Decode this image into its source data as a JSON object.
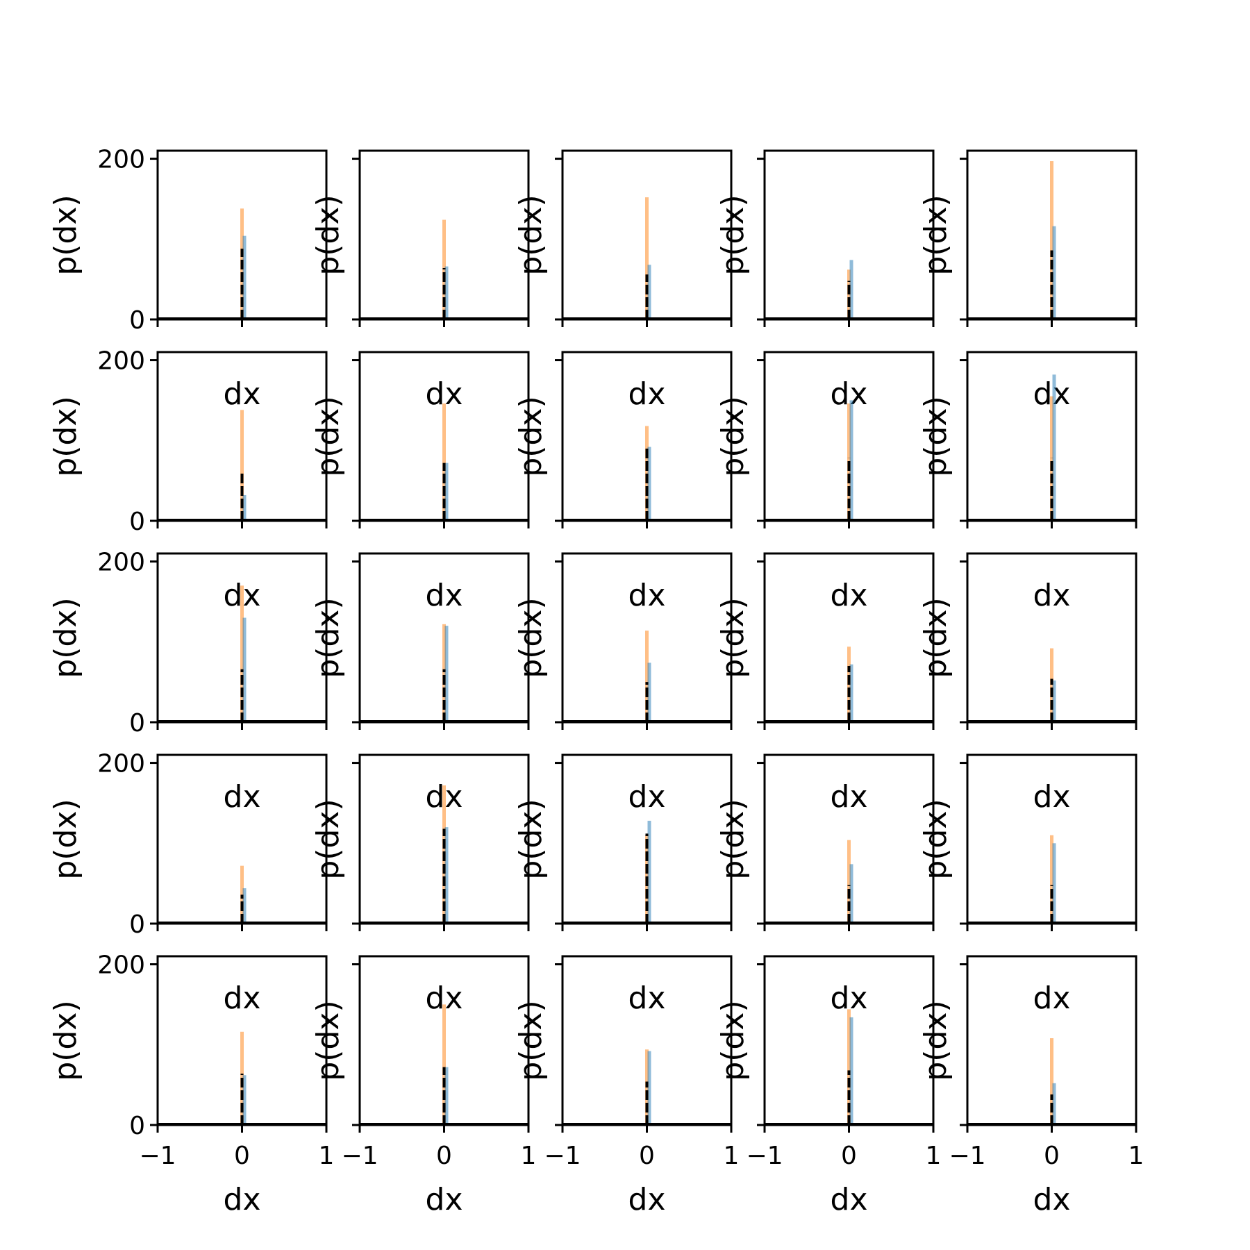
{
  "chart_data": {
    "type": "bar",
    "layout": "5x5 grid of histograms",
    "xlabel": "dx",
    "ylabel": "p(dx)",
    "xlim": [
      -1,
      1
    ],
    "ylim": [
      0,
      210
    ],
    "xticks": [
      -1,
      0,
      1
    ],
    "yticks": [
      0,
      200
    ],
    "xtick_labels": [
      "−1",
      "0",
      "1"
    ],
    "ytick_labels": [
      "0",
      "200"
    ],
    "colors": {
      "series_blue": "#1f77b4",
      "series_orange": "#ff7f0e",
      "curve": "#000000"
    },
    "panels": [
      {
        "row": 1,
        "col": 1,
        "orange_peak": 138,
        "blue_peak": 104,
        "black_peak": 88
      },
      {
        "row": 1,
        "col": 2,
        "orange_peak": 124,
        "blue_peak": 66,
        "black_peak": 64
      },
      {
        "row": 1,
        "col": 3,
        "orange_peak": 152,
        "blue_peak": 68,
        "black_peak": 56
      },
      {
        "row": 1,
        "col": 4,
        "orange_peak": 62,
        "blue_peak": 74,
        "black_peak": 48
      },
      {
        "row": 1,
        "col": 5,
        "orange_peak": 197,
        "blue_peak": 116,
        "black_peak": 86
      },
      {
        "row": 2,
        "col": 1,
        "orange_peak": 138,
        "blue_peak": 32,
        "black_peak": 62
      },
      {
        "row": 2,
        "col": 2,
        "orange_peak": 146,
        "blue_peak": 72,
        "black_peak": 72
      },
      {
        "row": 2,
        "col": 3,
        "orange_peak": 118,
        "blue_peak": 92,
        "black_peak": 92
      },
      {
        "row": 2,
        "col": 4,
        "orange_peak": 146,
        "blue_peak": 150,
        "black_peak": 78
      },
      {
        "row": 2,
        "col": 5,
        "orange_peak": 155,
        "blue_peak": 182,
        "black_peak": 78
      },
      {
        "row": 3,
        "col": 1,
        "orange_peak": 170,
        "blue_peak": 130,
        "black_peak": 66
      },
      {
        "row": 3,
        "col": 2,
        "orange_peak": 122,
        "blue_peak": 120,
        "black_peak": 66
      },
      {
        "row": 3,
        "col": 3,
        "orange_peak": 114,
        "blue_peak": 74,
        "black_peak": 50
      },
      {
        "row": 3,
        "col": 4,
        "orange_peak": 94,
        "blue_peak": 72,
        "black_peak": 70
      },
      {
        "row": 3,
        "col": 5,
        "orange_peak": 92,
        "blue_peak": 52,
        "black_peak": 54
      },
      {
        "row": 4,
        "col": 1,
        "orange_peak": 72,
        "blue_peak": 44,
        "black_peak": 36
      },
      {
        "row": 4,
        "col": 2,
        "orange_peak": 172,
        "blue_peak": 120,
        "black_peak": 118
      },
      {
        "row": 4,
        "col": 3,
        "orange_peak": 110,
        "blue_peak": 128,
        "black_peak": 112
      },
      {
        "row": 4,
        "col": 4,
        "orange_peak": 104,
        "blue_peak": 74,
        "black_peak": 48
      },
      {
        "row": 4,
        "col": 5,
        "orange_peak": 110,
        "blue_peak": 100,
        "black_peak": 48
      },
      {
        "row": 5,
        "col": 1,
        "orange_peak": 116,
        "blue_peak": 62,
        "black_peak": 64
      },
      {
        "row": 5,
        "col": 2,
        "orange_peak": 150,
        "blue_peak": 72,
        "black_peak": 72
      },
      {
        "row": 5,
        "col": 3,
        "orange_peak": 94,
        "blue_peak": 92,
        "black_peak": 54
      },
      {
        "row": 5,
        "col": 4,
        "orange_peak": 144,
        "blue_peak": 134,
        "black_peak": 68
      },
      {
        "row": 5,
        "col": 5,
        "orange_peak": 108,
        "blue_peak": 52,
        "black_peak": 38
      }
    ]
  }
}
